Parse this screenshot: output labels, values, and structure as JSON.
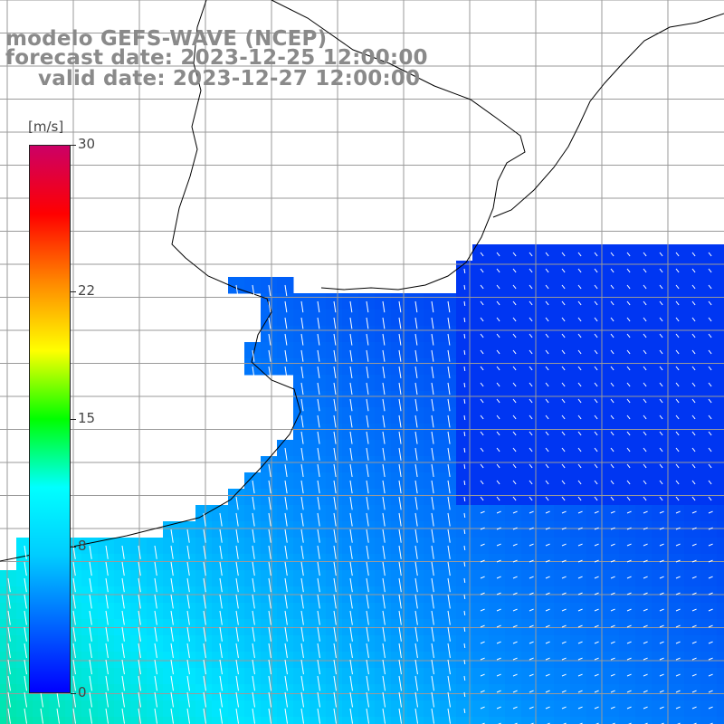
{
  "title": {
    "line1": "modelo GEFS-WAVE (NCEP)",
    "line2": "forecast date: 2023-12-25 12:00:00",
    "line3": "valid date: 2023-12-27 12:00:00"
  },
  "colorbar": {
    "unit": "[m/s]",
    "min": 0,
    "max": 30,
    "ticks": [
      {
        "value": 30,
        "label": "30"
      },
      {
        "value": 22,
        "label": "22"
      },
      {
        "value": 15,
        "label": "15"
      },
      {
        "value": 8,
        "label": "8"
      },
      {
        "value": 0,
        "label": "0"
      }
    ],
    "colors": [
      "#0000ff",
      "#0066ff",
      "#00ccff",
      "#00ffff",
      "#00ff00",
      "#ffff00",
      "#ff8800",
      "#ff0000",
      "#cc0066"
    ]
  },
  "map": {
    "land_color": "#ffffff",
    "grid_color": "#9a9a9a",
    "coast_color": "#000000",
    "arrow_color": "#ffffff"
  }
}
